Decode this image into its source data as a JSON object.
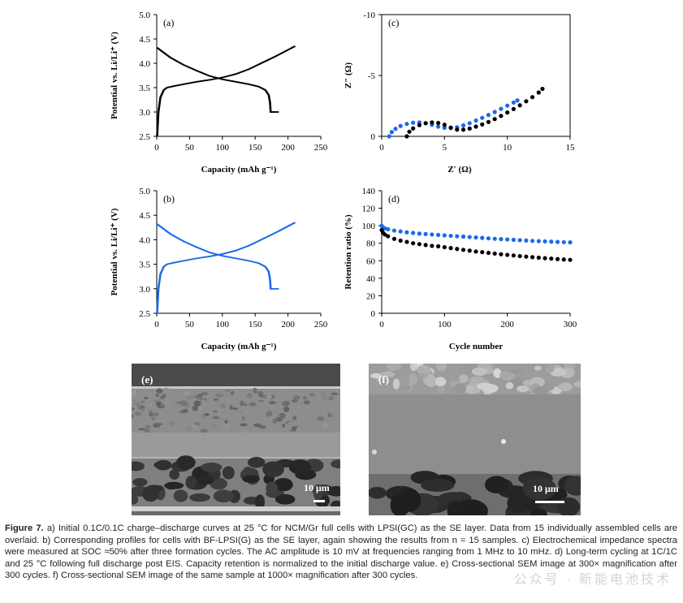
{
  "panels": {
    "a": {
      "label": "(a)",
      "xlabel": "Capacity (mAh g⁻¹)",
      "ylabel": "Potential vs. Li/Li⁺ (V)",
      "xticks": [
        "0",
        "50",
        "100",
        "150",
        "200",
        "250"
      ],
      "yticks": [
        "2.5",
        "3.0",
        "3.5",
        "4.0",
        "4.5",
        "5.0"
      ]
    },
    "b": {
      "label": "(b)",
      "xlabel": "Capacity (mAh g⁻¹)",
      "ylabel": "Potential vs. Li/Li⁺ (V)",
      "xticks": [
        "0",
        "50",
        "100",
        "150",
        "200",
        "250"
      ],
      "yticks": [
        "2.5",
        "3.0",
        "3.5",
        "4.0",
        "4.5",
        "5.0"
      ]
    },
    "c": {
      "label": "(c)",
      "xlabel": "Z′ (Ω)",
      "ylabel": "Z″ (Ω)",
      "xticks": [
        "0",
        "5",
        "10",
        "15"
      ],
      "yticks": [
        "0",
        "-5",
        "-10"
      ]
    },
    "d": {
      "label": "(d)",
      "xlabel": "Cycle number",
      "ylabel": "Retention ratio (%)",
      "xticks": [
        "0",
        "100",
        "200",
        "300"
      ],
      "yticks": [
        "0",
        "20",
        "40",
        "60",
        "80",
        "100",
        "120",
        "140"
      ]
    },
    "e": {
      "label": "(e)",
      "scalebar": "10 μm"
    },
    "f": {
      "label": "(f)",
      "scalebar": "10 μm"
    }
  },
  "chart_data": [
    {
      "panel": "a",
      "type": "line",
      "title": "",
      "xlabel": "Capacity (mAh g⁻¹)",
      "ylabel": "Potential vs. Li/Li⁺ (V)",
      "xlim": [
        0,
        250
      ],
      "ylim": [
        2.5,
        5.0
      ],
      "color": "#000000",
      "series": [
        {
          "name": "charge",
          "x": [
            0,
            2,
            5,
            10,
            15,
            25,
            40,
            60,
            80,
            100,
            120,
            140,
            160,
            180,
            200,
            210
          ],
          "y": [
            2.5,
            3.0,
            3.3,
            3.45,
            3.5,
            3.53,
            3.57,
            3.62,
            3.66,
            3.71,
            3.78,
            3.88,
            4.01,
            4.14,
            4.28,
            4.35
          ]
        },
        {
          "name": "discharge",
          "x": [
            0,
            10,
            20,
            40,
            60,
            80,
            100,
            120,
            140,
            155,
            165,
            170,
            172,
            173,
            185
          ],
          "y": [
            4.32,
            4.22,
            4.12,
            3.97,
            3.85,
            3.74,
            3.67,
            3.62,
            3.57,
            3.52,
            3.45,
            3.35,
            3.2,
            3.0,
            3.0
          ]
        }
      ]
    },
    {
      "panel": "b",
      "type": "line",
      "title": "",
      "xlabel": "Capacity (mAh g⁻¹)",
      "ylabel": "Potential vs. Li/Li⁺ (V)",
      "xlim": [
        0,
        250
      ],
      "ylim": [
        2.5,
        5.0
      ],
      "color": "#1a6be6",
      "series": [
        {
          "name": "charge",
          "x": [
            0,
            2,
            5,
            10,
            15,
            25,
            40,
            60,
            80,
            100,
            120,
            140,
            160,
            180,
            200,
            210
          ],
          "y": [
            2.5,
            3.0,
            3.3,
            3.45,
            3.5,
            3.53,
            3.57,
            3.62,
            3.66,
            3.71,
            3.78,
            3.88,
            4.01,
            4.14,
            4.28,
            4.35
          ]
        },
        {
          "name": "discharge",
          "x": [
            0,
            10,
            20,
            40,
            60,
            80,
            100,
            120,
            140,
            155,
            165,
            170,
            172,
            173,
            185
          ],
          "y": [
            4.32,
            4.22,
            4.12,
            3.97,
            3.85,
            3.74,
            3.67,
            3.62,
            3.57,
            3.52,
            3.45,
            3.35,
            3.2,
            3.0,
            3.0
          ]
        }
      ]
    },
    {
      "panel": "c",
      "type": "scatter",
      "title": "",
      "xlabel": "Z′ (Ω)",
      "ylabel": "Z″ (Ω)",
      "xlim": [
        0,
        15
      ],
      "ylim": [
        0,
        -10
      ],
      "series": [
        {
          "name": "BF-LPSI(G)",
          "color": "#1a6be6",
          "x": [
            0.6,
            0.8,
            1.1,
            1.5,
            2.0,
            2.5,
            3.0,
            3.5,
            4.0,
            4.5,
            5.0,
            5.5,
            6.0,
            6.5,
            7.0,
            7.5,
            8.0,
            8.5,
            9.0,
            9.5,
            10.0,
            10.5,
            10.8
          ],
          "y": [
            0,
            -0.35,
            -0.62,
            -0.85,
            -1.02,
            -1.12,
            -1.14,
            -1.08,
            -0.95,
            -0.8,
            -0.7,
            -0.68,
            -0.74,
            -0.9,
            -1.08,
            -1.3,
            -1.52,
            -1.76,
            -2.0,
            -2.26,
            -2.52,
            -2.78,
            -2.95
          ]
        },
        {
          "name": "LPSI(GC)",
          "color": "#000000",
          "x": [
            2.0,
            2.2,
            2.5,
            3.0,
            3.5,
            4.0,
            4.5,
            5.0,
            5.5,
            6.0,
            6.5,
            7.0,
            7.5,
            8.0,
            8.5,
            9.0,
            9.5,
            10.0,
            10.5,
            11.0,
            11.5,
            12.0,
            12.5,
            12.8
          ],
          "y": [
            0,
            -0.38,
            -0.65,
            -0.92,
            -1.08,
            -1.14,
            -1.1,
            -0.95,
            -0.72,
            -0.55,
            -0.55,
            -0.64,
            -0.8,
            -0.98,
            -1.18,
            -1.42,
            -1.68,
            -1.96,
            -2.24,
            -2.55,
            -2.88,
            -3.22,
            -3.6,
            -3.9
          ]
        }
      ]
    },
    {
      "panel": "d",
      "type": "scatter",
      "title": "",
      "xlabel": "Cycle number",
      "ylabel": "Retention ratio (%)",
      "xlim": [
        0,
        300
      ],
      "ylim": [
        0,
        140
      ],
      "series": [
        {
          "name": "BF-LPSI(G)",
          "color": "#1a6be6",
          "x": [
            0,
            2,
            5,
            10,
            20,
            30,
            40,
            50,
            60,
            70,
            80,
            90,
            100,
            110,
            120,
            130,
            140,
            150,
            160,
            170,
            180,
            190,
            200,
            210,
            220,
            230,
            240,
            250,
            260,
            270,
            280,
            290,
            300
          ],
          "y": [
            100,
            98,
            97,
            96,
            94.5,
            93.5,
            92.5,
            91.8,
            91,
            90.5,
            90,
            89.5,
            89,
            88.5,
            88,
            87.6,
            87.1,
            86.6,
            86.1,
            85.6,
            85.1,
            84.7,
            84.3,
            83.9,
            83.5,
            83.1,
            82.7,
            82.4,
            82.1,
            81.8,
            81.5,
            81.2,
            81
          ]
        },
        {
          "name": "LPSI(GC)",
          "color": "#000000",
          "x": [
            0,
            2,
            5,
            10,
            20,
            30,
            40,
            50,
            60,
            70,
            80,
            90,
            100,
            110,
            120,
            130,
            140,
            150,
            160,
            170,
            180,
            190,
            200,
            210,
            220,
            230,
            240,
            250,
            260,
            270,
            280,
            290,
            300
          ],
          "y": [
            95,
            92,
            90,
            88,
            85,
            83,
            81.5,
            80,
            79,
            78,
            77,
            76.5,
            75.5,
            74.5,
            73.5,
            72.5,
            71.5,
            70.5,
            69.8,
            69,
            68.2,
            67.4,
            66.7,
            66,
            65.3,
            64.7,
            64.1,
            63.5,
            62.9,
            62.4,
            61.9,
            61.4,
            61
          ]
        }
      ]
    }
  ],
  "caption": {
    "label": "Figure 7.",
    "text": " a) Initial 0.1C/0.1C charge–discharge curves at 25 °C for NCM/Gr full cells with LPSI(GC) as the SE layer. Data from 15 individually assembled cells are overlaid. b) Corresponding profiles for cells with BF-LPSI(G) as the SE layer, again showing the results from n = 15 samples. c) Electrochemical impedance spectra were measured at SOC ≈50% after three formation cycles. The AC amplitude is 10 mV at frequencies ranging from 1 MHz to 10 mHz. d) Long-term cycling at 1C/1C and 25 °C following full discharge post EIS. Capacity retention is normalized to the initial discharge value. e) Cross-sectional SEM image at 300× magnification after 300 cycles. f) Cross-sectional SEM image of the same sample at 1000× magnification after 300 cycles."
  },
  "watermark": "公众号 · 新能电池技术"
}
